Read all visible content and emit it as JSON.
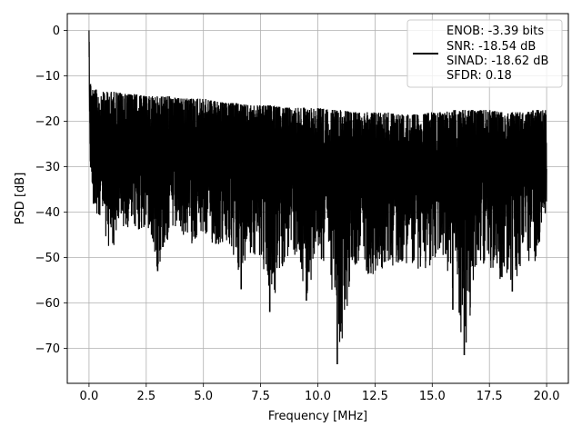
{
  "chart_data": {
    "type": "line",
    "title": "",
    "xlabel": "Frequency [MHz]",
    "ylabel": "PSD [dB]",
    "xlim": [
      -0.95,
      20.95
    ],
    "ylim": [
      -77.7,
      3.7
    ],
    "xticks": [
      0.0,
      2.5,
      5.0,
      7.5,
      10.0,
      12.5,
      15.0,
      17.5,
      20.0
    ],
    "xtick_labels": [
      "0.0",
      "2.5",
      "5.0",
      "7.5",
      "10.0",
      "12.5",
      "15.0",
      "17.5",
      "20.0"
    ],
    "yticks": [
      0,
      -10,
      -20,
      -30,
      -40,
      -50,
      -60,
      -70
    ],
    "ytick_labels": [
      "0",
      "−10",
      "−20",
      "−30",
      "−40",
      "−50",
      "−60",
      "−70"
    ],
    "grid": true,
    "line_color": "#000000",
    "legend": {
      "placement": "upper right",
      "entries": [
        "ENOB: -3.39 bits",
        "SNR: -18.54 dB",
        "SINAD: -18.62 dB",
        "SFDR: 0.18"
      ]
    },
    "series": [
      {
        "x": [
          0.0,
          0.02,
          0.04,
          0.06,
          0.08,
          0.1,
          0.15,
          0.2,
          0.3,
          0.5,
          0.7,
          0.9,
          1.2,
          1.6,
          2.0,
          2.5,
          3.0,
          3.5,
          4.0,
          4.5,
          5.0,
          5.5,
          6.0,
          6.5,
          7.0,
          7.5,
          8.0,
          8.5,
          9.0,
          9.5,
          10.0,
          10.5,
          11.0,
          11.5,
          12.0,
          12.5,
          13.0,
          13.5,
          14.0,
          14.5,
          15.0,
          15.5,
          16.0,
          16.5,
          17.0,
          17.5,
          18.0,
          18.5,
          19.0,
          19.5,
          20.0
        ],
        "upper": [
          0.0,
          -4.0,
          -9.0,
          -11.0,
          -11.5,
          -12.0,
          -12.5,
          -13.0,
          -13.0,
          -13.5,
          -13.5,
          -13.5,
          -13.5,
          -14.0,
          -14.0,
          -14.5,
          -14.5,
          -14.5,
          -15.0,
          -15.0,
          -15.0,
          -15.5,
          -16.0,
          -16.0,
          -16.5,
          -16.5,
          -16.5,
          -17.0,
          -17.0,
          -17.0,
          -17.0,
          -17.5,
          -17.5,
          -18.0,
          -18.0,
          -18.0,
          -18.0,
          -18.5,
          -18.5,
          -18.5,
          -18.0,
          -18.0,
          -17.5,
          -17.5,
          -17.5,
          -17.5,
          -18.0,
          -18.0,
          -18.0,
          -17.5,
          -17.5
        ],
        "lower": [
          -5.0,
          -17.0,
          -24.0,
          -33.0,
          -28.0,
          -32.0,
          -35.0,
          -40.0,
          -46.0,
          -40.0,
          -45.0,
          -51.0,
          -46.0,
          -43.0,
          -45.0,
          -44.0,
          -53.0,
          -46.0,
          -45.0,
          -47.0,
          -46.0,
          -48.0,
          -48.0,
          -53.5,
          -49.0,
          -50.0,
          -62.0,
          -52.0,
          -50.0,
          -59.0,
          -50.0,
          -53.0,
          -73.5,
          -52.0,
          -53.0,
          -55.0,
          -52.0,
          -52.0,
          -51.0,
          -54.0,
          -52.0,
          -50.0,
          -61.5,
          -71.5,
          -50.0,
          -53.0,
          -55.0,
          -57.0,
          -52.0,
          -51.0,
          -40.0
        ],
        "mid": [
          0.0,
          -15.0,
          -22.0,
          -27.0,
          -25.0,
          -28.0,
          -29.0,
          -31.0,
          -30.0,
          -30.0,
          -31.0,
          -31.0,
          -30.0,
          -30.0,
          -30.0,
          -30.0,
          -30.5,
          -30.5,
          -31.0,
          -31.0,
          -31.0,
          -31.0,
          -31.5,
          -31.5,
          -32.0,
          -32.0,
          -32.0,
          -32.0,
          -32.0,
          -32.0,
          -32.0,
          -32.0,
          -32.5,
          -32.5,
          -32.5,
          -32.5,
          -32.5,
          -33.0,
          -33.0,
          -33.0,
          -32.5,
          -32.5,
          -32.0,
          -32.0,
          -32.0,
          -32.0,
          -32.5,
          -32.5,
          -32.5,
          -32.0,
          -32.0
        ],
        "spikes": [
          {
            "x": 3.0,
            "y": -53.0
          },
          {
            "x": 6.65,
            "y": -57.0
          },
          {
            "x": 7.9,
            "y": -62.0
          },
          {
            "x": 9.5,
            "y": -59.5
          },
          {
            "x": 10.85,
            "y": -73.5
          },
          {
            "x": 15.9,
            "y": -61.5
          },
          {
            "x": 16.4,
            "y": -71.5
          },
          {
            "x": 18.5,
            "y": -57.5
          }
        ]
      }
    ]
  }
}
